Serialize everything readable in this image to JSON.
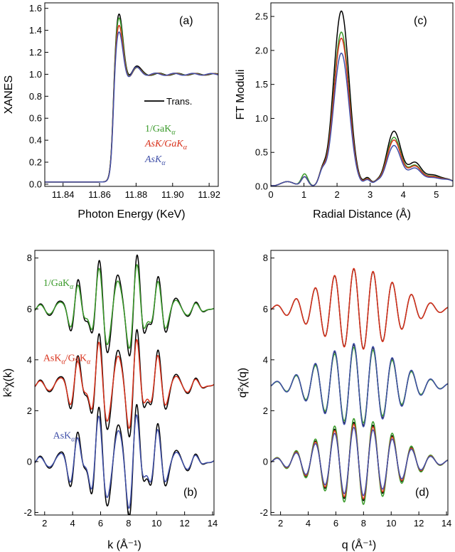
{
  "colors": {
    "black": "#000000",
    "green": "#3a9a2a",
    "red": "#d8321c",
    "blue": "#4050a8"
  },
  "chart_data": [
    {
      "id": "a",
      "type": "line",
      "panel_label": "(a)",
      "xlabel": "Photon Energy (KeV)",
      "ylabel": "XANES",
      "xlim": [
        11.83,
        11.925
      ],
      "ylim": [
        -0.02,
        1.65
      ],
      "xticks": [
        "11.84",
        "11.86",
        "11.88",
        "11.90",
        "11.92"
      ],
      "yticks": [
        "0.0",
        "0.2",
        "0.4",
        "0.6",
        "0.8",
        "1.0",
        "1.2",
        "1.4",
        "1.6"
      ],
      "legend": {
        "line_label": "Trans.",
        "entries": [
          "1/GaK",
          "AsK/GaK",
          "AsK"
        ],
        "subscript": "α"
      },
      "series": [
        {
          "name": "Trans.",
          "color": "black",
          "peak": 1.56
        },
        {
          "name": "1/GaKα",
          "color": "green",
          "peak": 1.52
        },
        {
          "name": "AsKα/GaKα",
          "color": "red",
          "peak": 1.45
        },
        {
          "name": "AsKα",
          "color": "blue",
          "peak": 1.39
        }
      ]
    },
    {
      "id": "c",
      "type": "line",
      "panel_label": "(c)",
      "xlabel": "Radial Distance (Å)",
      "ylabel": "FT Moduli",
      "xlim": [
        0,
        5.5
      ],
      "ylim": [
        0,
        2.7
      ],
      "xticks": [
        "0",
        "1",
        "2",
        "3",
        "4",
        "5"
      ],
      "yticks": [
        "0.0",
        "0.5",
        "1.0",
        "1.5",
        "2.0",
        "2.5"
      ],
      "series": [
        {
          "name": "Trans.",
          "color": "black",
          "peak1": 2.58,
          "peak2": 0.81
        },
        {
          "name": "1/GaKα",
          "color": "green",
          "peak1": 2.27,
          "peak2": 0.72
        },
        {
          "name": "AsKα/GaKα",
          "color": "red",
          "peak1": 2.18,
          "peak2": 0.68
        },
        {
          "name": "AsKα",
          "color": "blue",
          "peak1": 1.96,
          "peak2": 0.6
        }
      ]
    },
    {
      "id": "b",
      "type": "line",
      "panel_label": "(b)",
      "xlabel": "k (Å⁻¹)",
      "ylabel": "k²χ(k)",
      "xlim": [
        1.3,
        14.1
      ],
      "ylim": [
        -2.1,
        8.3
      ],
      "xticks": [
        "2",
        "4",
        "6",
        "8",
        "10",
        "12",
        "14"
      ],
      "yticks": [
        "-2",
        "0",
        "2",
        "4",
        "6",
        "8"
      ],
      "annotations": [
        {
          "text": "1/GaK",
          "sub": "α",
          "color": "green",
          "at_k": 1.9,
          "at_y": 6.9
        },
        {
          "text": "AsK",
          "sub": "α",
          "text2": "/GaK",
          "color": "red",
          "at_k": 1.9,
          "at_y": 3.95
        },
        {
          "text": "AsK",
          "sub": "α",
          "color": "blue",
          "at_k": 2.6,
          "at_y": 0.9
        }
      ],
      "series": [
        {
          "name": "1/GaKα exp",
          "color": "black",
          "offset": 6
        },
        {
          "name": "1/GaKα fit",
          "color": "green",
          "offset": 6
        },
        {
          "name": "AsKα/GaKα exp",
          "color": "black",
          "offset": 3
        },
        {
          "name": "AsKα/GaKα fit",
          "color": "red",
          "offset": 3
        },
        {
          "name": "AsKα exp",
          "color": "black",
          "offset": 0
        },
        {
          "name": "AsKα fit",
          "color": "blue",
          "offset": 0
        }
      ]
    },
    {
      "id": "d",
      "type": "line",
      "panel_label": "(d)",
      "xlabel": "q (Å⁻¹)",
      "ylabel": "q²χ(q)",
      "xlim": [
        1.3,
        14.1
      ],
      "ylim": [
        -2.1,
        8.3
      ],
      "xticks": [
        "2",
        "4",
        "6",
        "8",
        "10",
        "12",
        "14"
      ],
      "yticks": [
        "-2",
        "0",
        "2",
        "4",
        "6",
        "8"
      ],
      "series": [
        {
          "name": "top black",
          "color": "black",
          "offset": 6
        },
        {
          "name": "top red",
          "color": "red",
          "offset": 6
        },
        {
          "name": "mid black",
          "color": "black",
          "offset": 3
        },
        {
          "name": "mid green",
          "color": "green",
          "offset": 3
        },
        {
          "name": "mid blue",
          "color": "blue",
          "offset": 3
        },
        {
          "name": "bottom black",
          "color": "black",
          "offset": 0
        },
        {
          "name": "bottom green",
          "color": "green",
          "offset": 0
        },
        {
          "name": "bottom red",
          "color": "red",
          "offset": 0
        },
        {
          "name": "bottom blue",
          "color": "blue",
          "offset": 0
        }
      ]
    }
  ]
}
